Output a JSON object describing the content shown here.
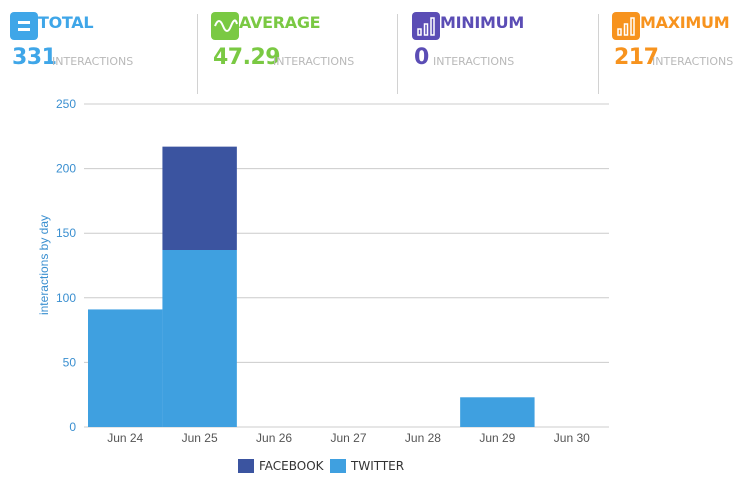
{
  "stats": [
    {
      "key": "total",
      "title": "TOTAL",
      "value": "331",
      "unit": "INTERACTIONS",
      "color": "#3fa6e8",
      "icon": "equals-icon"
    },
    {
      "key": "average",
      "title": "AVERAGE",
      "value": "47.29",
      "unit": "INTERACTIONS",
      "color": "#7ac943",
      "icon": "wave-icon"
    },
    {
      "key": "minimum",
      "title": "MINIMUM",
      "value": "0",
      "unit": "INTERACTIONS",
      "color": "#5b4db5",
      "icon": "bars-up-icon"
    },
    {
      "key": "maximum",
      "title": "MAXIMUM",
      "value": "217",
      "unit": "INTERACTIONS",
      "color": "#f7931e",
      "icon": "bars-up-icon"
    }
  ],
  "chart_data": {
    "type": "bar",
    "stacked": true,
    "categories": [
      "Jun 24",
      "Jun 25",
      "Jun 26",
      "Jun 27",
      "Jun 28",
      "Jun 29",
      "Jun 30"
    ],
    "series": [
      {
        "name": "TWITTER",
        "color": "#3fa0e0",
        "values": [
          91,
          137,
          0,
          0,
          0,
          23,
          0
        ]
      },
      {
        "name": "FACEBOOK",
        "color": "#3b54a0",
        "values": [
          0,
          80,
          0,
          0,
          0,
          0,
          0
        ]
      }
    ],
    "ylabel": "interactions by day",
    "ylim": [
      0,
      250
    ],
    "yticks": [
      0,
      50,
      100,
      150,
      200,
      250
    ],
    "grid": true,
    "legend_position": "bottom-center"
  },
  "legend": [
    {
      "label": "FACEBOOK",
      "color": "#3b54a0"
    },
    {
      "label": "TWITTER",
      "color": "#3fa0e0"
    }
  ]
}
